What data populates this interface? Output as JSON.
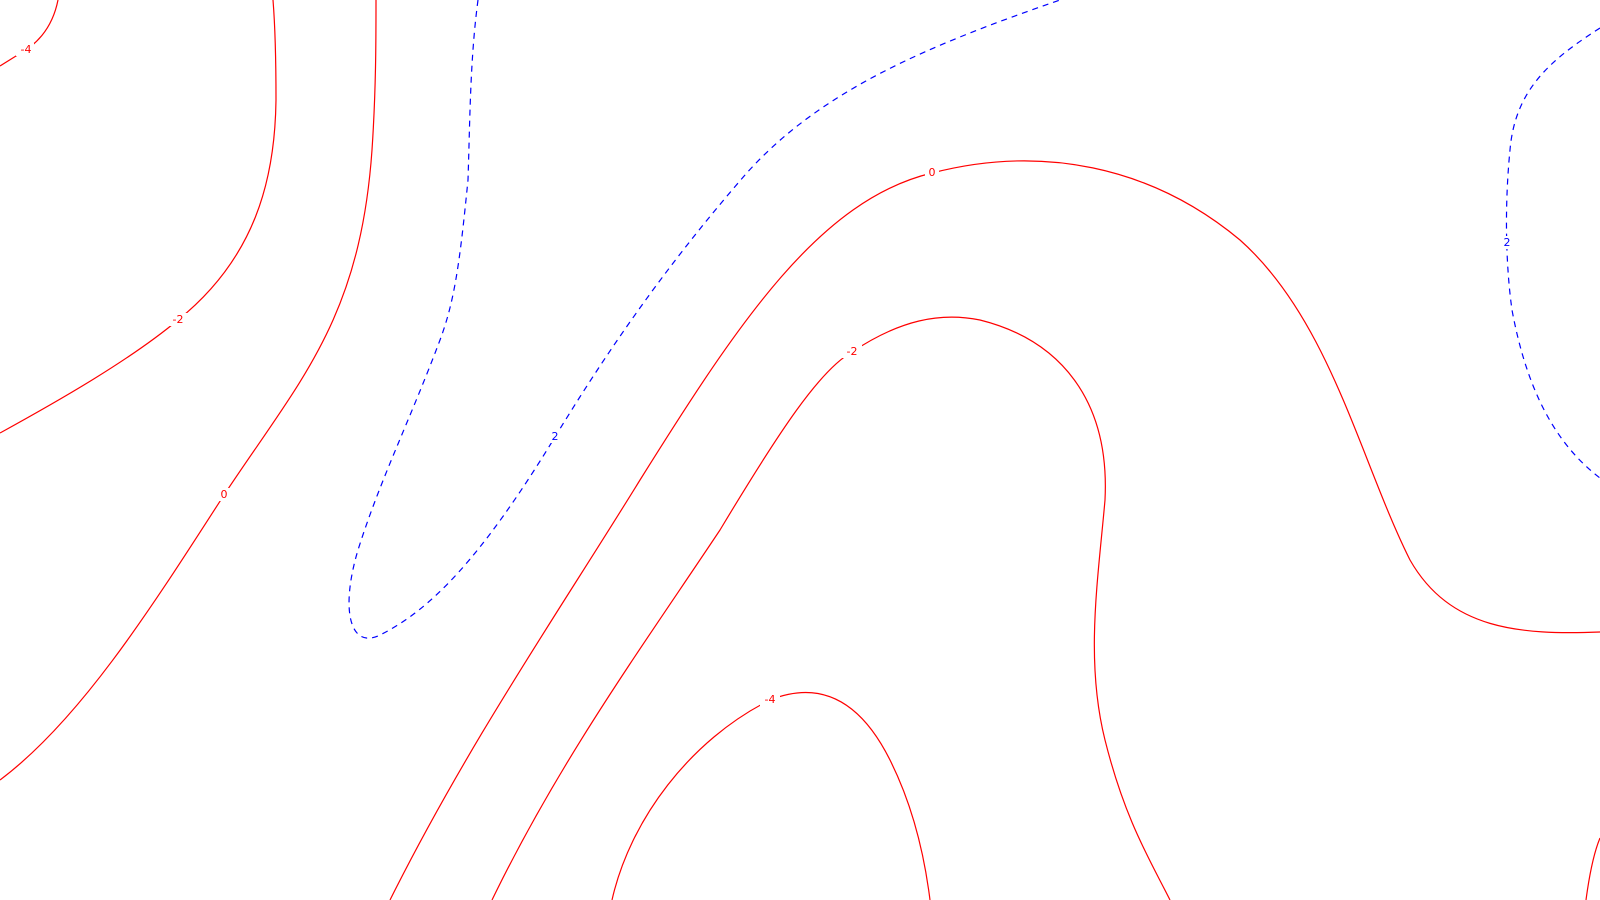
{
  "contours": [
    {
      "id": "neg4-top-left",
      "level": -4,
      "label": "-4",
      "kind": "negative",
      "color": "#ff0000"
    },
    {
      "id": "neg2-left",
      "level": -2,
      "label": "-2",
      "kind": "negative",
      "color": "#ff0000"
    },
    {
      "id": "zero-left",
      "level": 0,
      "label": "0",
      "kind": "negative",
      "color": "#ff0000"
    },
    {
      "id": "pos2-center",
      "level": 2,
      "label": "2",
      "kind": "positive",
      "color": "#0000ff"
    },
    {
      "id": "zero-center",
      "level": 0,
      "label": "0",
      "kind": "negative",
      "color": "#ff0000"
    },
    {
      "id": "neg2-center",
      "level": -2,
      "label": "-2",
      "kind": "negative",
      "color": "#ff0000"
    },
    {
      "id": "neg4-bottom",
      "level": -4,
      "label": "-4",
      "kind": "negative",
      "color": "#ff0000"
    },
    {
      "id": "pos2-right",
      "level": 2,
      "label": "2",
      "kind": "positive",
      "color": "#0000ff"
    }
  ],
  "styles": {
    "negative_color": "#ff0000",
    "positive_color": "#0000ff",
    "background": "#ffffff"
  }
}
